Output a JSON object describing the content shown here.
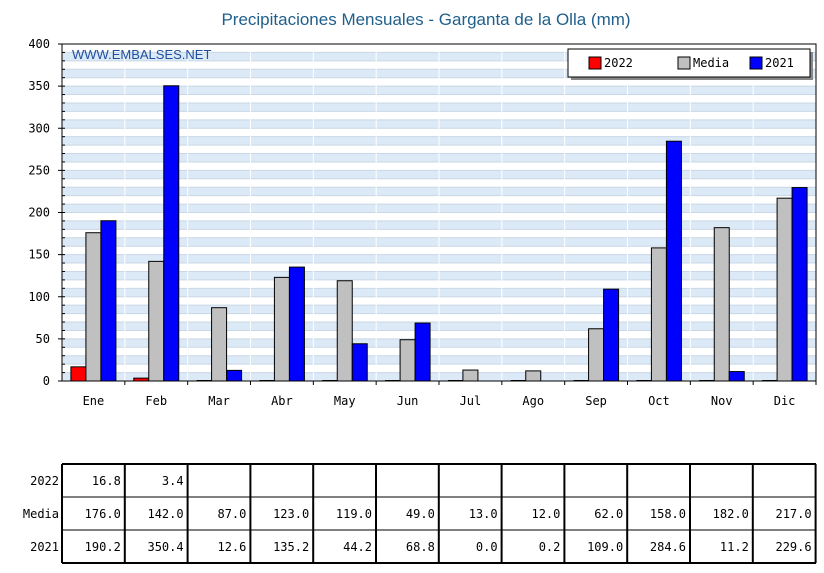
{
  "chart_data": {
    "type": "bar",
    "title": "Precipitaciones Mensuales - Garganta de la Olla (mm)",
    "watermark": "WWW.EMBALSES.NET",
    "categories": [
      "Ene",
      "Feb",
      "Mar",
      "Abr",
      "May",
      "Jun",
      "Jul",
      "Ago",
      "Sep",
      "Oct",
      "Nov",
      "Dic"
    ],
    "series": [
      {
        "name": "2022",
        "color": "#ff0000",
        "values": [
          16.8,
          3.4,
          null,
          null,
          null,
          null,
          null,
          null,
          null,
          null,
          null,
          null
        ]
      },
      {
        "name": "Media",
        "color": "#c0c0c0",
        "values": [
          176.0,
          142.0,
          87.0,
          123.0,
          119.0,
          49.0,
          13.0,
          12.0,
          62.0,
          158.0,
          182.0,
          217.0
        ]
      },
      {
        "name": "2021",
        "color": "#0000ff",
        "values": [
          190.2,
          350.4,
          12.6,
          135.2,
          44.2,
          68.8,
          0.0,
          0.2,
          109.0,
          284.6,
          11.2,
          229.6
        ]
      }
    ],
    "ylim": [
      0,
      400
    ],
    "yticks": [
      0,
      50,
      100,
      150,
      200,
      250,
      300,
      350,
      400
    ],
    "grid": true,
    "legend_position": "top-right"
  },
  "table": {
    "rows": [
      {
        "label": "2022",
        "cells": [
          "16.8",
          "3.4",
          "",
          "",
          "",
          "",
          "",
          "",
          "",
          "",
          "",
          ""
        ]
      },
      {
        "label": "Media",
        "cells": [
          "176.0",
          "142.0",
          "87.0",
          "123.0",
          "119.0",
          "49.0",
          "13.0",
          "12.0",
          "62.0",
          "158.0",
          "182.0",
          "217.0"
        ]
      },
      {
        "label": "2021",
        "cells": [
          "190.2",
          "350.4",
          "12.6",
          "135.2",
          "44.2",
          "68.8",
          "0.0",
          "0.2",
          "109.0",
          "284.6",
          "11.2",
          "229.6"
        ]
      }
    ]
  }
}
